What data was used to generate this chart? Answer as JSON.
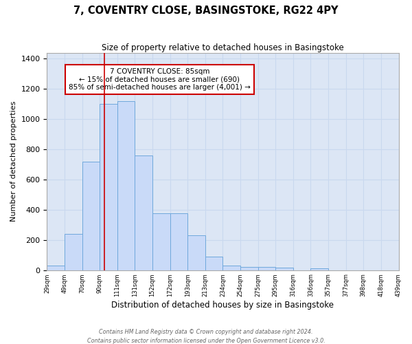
{
  "title": "7, COVENTRY CLOSE, BASINGSTOKE, RG22 4PY",
  "subtitle": "Size of property relative to detached houses in Basingstoke",
  "xlabel": "Distribution of detached houses by size in Basingstoke",
  "ylabel": "Number of detached properties",
  "bar_heights": [
    30,
    240,
    720,
    1100,
    1120,
    760,
    375,
    375,
    230,
    90,
    30,
    20,
    20,
    15,
    0,
    10,
    0,
    0,
    0,
    0
  ],
  "bin_labels": [
    "29sqm",
    "49sqm",
    "70sqm",
    "90sqm",
    "111sqm",
    "131sqm",
    "152sqm",
    "172sqm",
    "193sqm",
    "213sqm",
    "234sqm",
    "254sqm",
    "275sqm",
    "295sqm",
    "316sqm",
    "336sqm",
    "357sqm",
    "377sqm",
    "398sqm",
    "418sqm",
    "439sqm"
  ],
  "bar_color": "#c9daf8",
  "bar_edge_color": "#6fa8dc",
  "grid_color": "#c9d8ef",
  "background_color": "#dce6f5",
  "vline_color": "#cc0000",
  "annotation_title": "7 COVENTRY CLOSE: 85sqm",
  "annotation_line1": "← 15% of detached houses are smaller (690)",
  "annotation_line2": "85% of semi-detached houses are larger (4,001) →",
  "annotation_box_color": "#ffffff",
  "annotation_box_edge": "#cc0000",
  "ylim": [
    0,
    1440
  ],
  "yticks": [
    0,
    200,
    400,
    600,
    800,
    1000,
    1200,
    1400
  ],
  "footer1": "Contains HM Land Registry data © Crown copyright and database right 2024.",
  "footer2": "Contains public sector information licensed under the Open Government Licence v3.0."
}
